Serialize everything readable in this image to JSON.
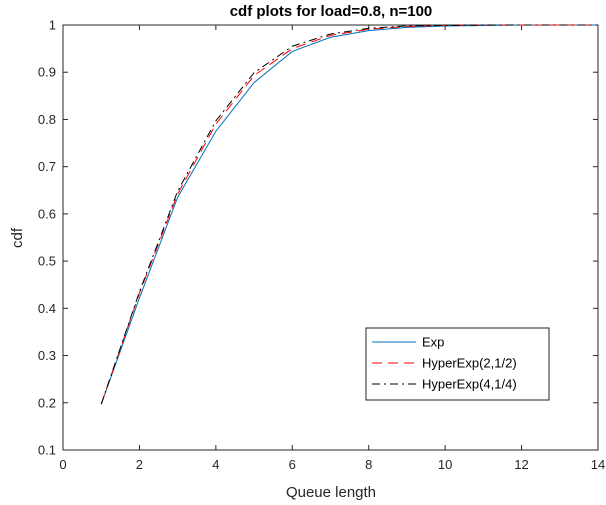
{
  "chart_data": {
    "type": "line",
    "title": "cdf plots for load=0.8, n=100",
    "xlabel": "Queue length",
    "ylabel": "cdf",
    "xlim": [
      0,
      14
    ],
    "ylim": [
      0.1,
      1
    ],
    "xticks": [
      0,
      2,
      4,
      6,
      8,
      10,
      12,
      14
    ],
    "yticks": [
      0.1,
      0.2,
      0.3,
      0.4,
      0.5,
      0.6,
      0.7,
      0.8,
      0.9,
      1
    ],
    "x": [
      1,
      2,
      3,
      4,
      5,
      6,
      7,
      8,
      9,
      10,
      11,
      12,
      13,
      14
    ],
    "legend_position": "lower-right",
    "grid": false,
    "series": [
      {
        "name": "Exp",
        "color": "#0072bd",
        "style": "solid",
        "values": [
          0.197,
          0.422,
          0.635,
          0.775,
          0.878,
          0.944,
          0.974,
          0.988,
          0.995,
          0.998,
          0.999,
          1.0,
          1.0,
          1.0
        ]
      },
      {
        "name": "HyperExp(2,1/2)",
        "color": "#ff0000",
        "style": "dashed",
        "values": [
          0.197,
          0.432,
          0.642,
          0.79,
          0.893,
          0.95,
          0.978,
          0.991,
          0.997,
          0.999,
          1.0,
          1.0,
          1.0,
          1.0
        ]
      },
      {
        "name": "HyperExp(4,1/4)",
        "color": "#000000",
        "style": "dashdot",
        "values": [
          0.197,
          0.435,
          0.648,
          0.797,
          0.899,
          0.955,
          0.981,
          0.993,
          0.998,
          0.999,
          1.0,
          1.0,
          1.0,
          1.0
        ]
      }
    ]
  }
}
